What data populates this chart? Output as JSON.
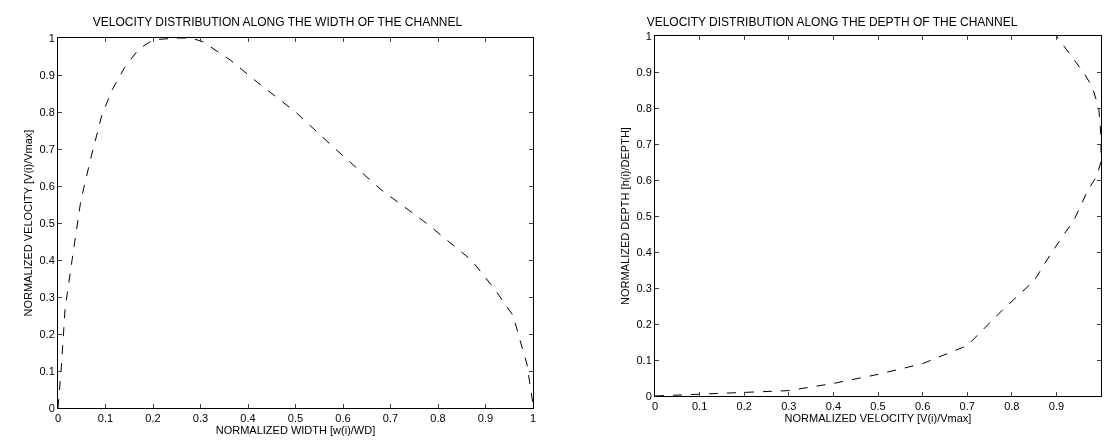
{
  "chart_data": [
    {
      "type": "line",
      "title": "VELOCITY DISTRIBUTION ALONG THE WIDTH OF THE CHANNEL",
      "xlabel": "NORMALIZED WIDTH [w(i)/WD]",
      "ylabel": "NORMALIZED VELOCITY [V(i)/Vmax]",
      "x": [
        0,
        0.007,
        0.015,
        0.033,
        0.048,
        0.07,
        0.092,
        0.114,
        0.14,
        0.17,
        0.2,
        0.25,
        0.28,
        0.305,
        0.363,
        0.42,
        0.5,
        0.584,
        0.68,
        0.775,
        0.87,
        0.92,
        0.958,
        0.98,
        0.987,
        1
      ],
      "series": [
        {
          "color": "#000000",
          "values": [
            0,
            0.11,
            0.27,
            0.43,
            0.56,
            0.68,
            0.79,
            0.86,
            0.92,
            0.97,
            0.995,
            1,
            1,
            0.99,
            0.94,
            0.88,
            0.8,
            0.7,
            0.59,
            0.5,
            0.4,
            0.32,
            0.25,
            0.15,
            0.12,
            0.01
          ]
        }
      ],
      "xlim": [
        0,
        1
      ],
      "ylim": [
        0,
        1
      ],
      "xticks": [
        0,
        0.1,
        0.2,
        0.3,
        0.4,
        0.5,
        0.6,
        0.7,
        0.8,
        0.9,
        1
      ],
      "yticks": [
        0,
        0.1,
        0.2,
        0.3,
        0.4,
        0.5,
        0.6,
        0.7,
        0.8,
        0.9,
        1
      ],
      "grid": false,
      "line_style": "dashed"
    },
    {
      "type": "line",
      "title": "VELOCITY DISTRIBUTION ALONG THE DEPTH OF THE CHANNEL",
      "xlabel": "NORMALIZED VELOCITY [V(i)/Vmax]",
      "ylabel": "NORMALIZED DEPTH [h(i)/DEPTH]",
      "x": [
        0,
        0.1,
        0.2,
        0.3,
        0.4,
        0.5,
        0.6,
        0.7,
        0.78,
        0.85,
        0.89,
        0.94,
        0.97,
        0.99,
        1,
        1,
        0.995,
        0.98,
        0.96,
        0.93,
        0.9
      ],
      "series": [
        {
          "color": "#000000",
          "values": [
            0,
            0.005,
            0.01,
            0.015,
            0.035,
            0.06,
            0.09,
            0.14,
            0.24,
            0.32,
            0.4,
            0.49,
            0.57,
            0.61,
            0.65,
            0.72,
            0.8,
            0.86,
            0.9,
            0.95,
            1
          ]
        }
      ],
      "xlim": [
        0,
        1
      ],
      "ylim": [
        0,
        1
      ],
      "xticks": [
        0,
        0.1,
        0.2,
        0.3,
        0.4,
        0.5,
        0.6,
        0.7,
        0.8,
        0.9
      ],
      "yticks": [
        0,
        0.1,
        0.2,
        0.3,
        0.4,
        0.5,
        0.6,
        0.7,
        0.8,
        0.9,
        1
      ],
      "grid": false,
      "line_style": "dashed"
    }
  ]
}
